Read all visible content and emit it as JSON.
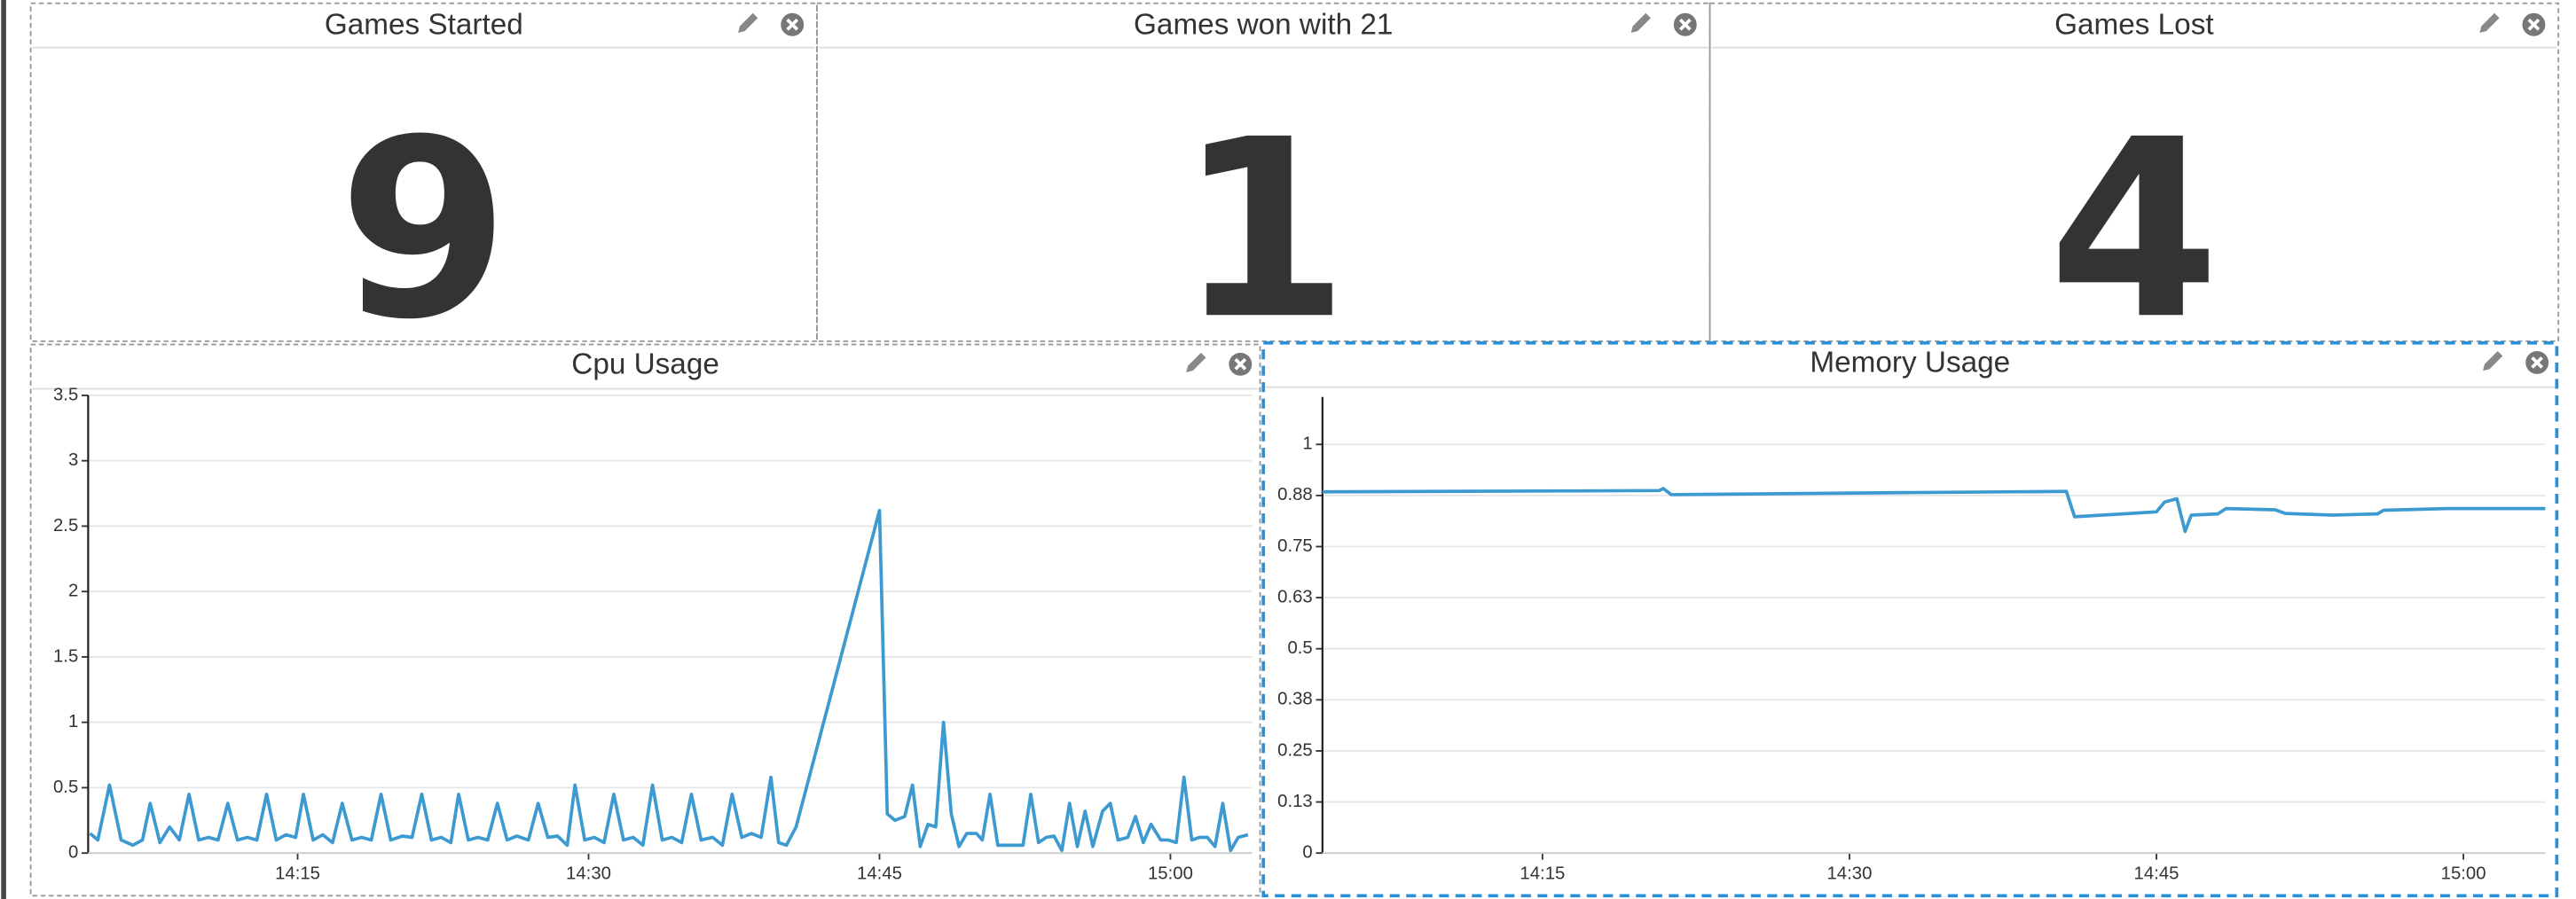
{
  "stats": [
    {
      "title": "Games Started",
      "value": 9
    },
    {
      "title": "Games won with 21",
      "value": 1
    },
    {
      "title": "Games Lost",
      "value": 4
    }
  ],
  "chart_data": [
    {
      "type": "line",
      "title": "Cpu Usage",
      "color": "#3d9ad1",
      "grid": true,
      "x": [
        844.3,
        844.7,
        845.3,
        845.9,
        846.5,
        847.0,
        847.4,
        847.9,
        848.4,
        848.9,
        849.4,
        849.9,
        850.4,
        850.9,
        851.4,
        851.9,
        852.4,
        852.9,
        853.4,
        853.9,
        854.4,
        854.9,
        855.3,
        855.8,
        856.3,
        856.8,
        857.3,
        857.8,
        858.3,
        858.8,
        859.3,
        859.8,
        860.4,
        860.9,
        861.4,
        861.9,
        862.4,
        862.9,
        863.3,
        863.8,
        864.3,
        864.8,
        865.3,
        865.8,
        866.3,
        866.9,
        867.4,
        867.9,
        868.4,
        868.9,
        869.3,
        869.8,
        870.3,
        870.8,
        871.3,
        871.8,
        872.3,
        872.8,
        873.3,
        873.8,
        874.3,
        874.8,
        875.3,
        875.8,
        876.4,
        876.9,
        877.4,
        877.9,
        878.4,
        878.9,
        879.4,
        879.8,
        880.2,
        880.7,
        885.0,
        885.4,
        885.8,
        886.3,
        886.7,
        887.1,
        887.5,
        887.9,
        888.3,
        888.7,
        889.1,
        889.5,
        890.0,
        890.3,
        890.7,
        891.1,
        891.6,
        892.1,
        892.4,
        892.8,
        893.2,
        893.6,
        894.0,
        894.4,
        894.8,
        895.2,
        895.6,
        896.0,
        896.5,
        896.9,
        897.3,
        897.8,
        898.2,
        898.6,
        899.0,
        899.5,
        899.9,
        900.3,
        900.7,
        901.1,
        901.5,
        901.9,
        902.3,
        902.7,
        903.1,
        903.5,
        904.0
      ],
      "values": [
        0.15,
        0.1,
        0.52,
        0.1,
        0.06,
        0.1,
        0.38,
        0.08,
        0.2,
        0.1,
        0.45,
        0.1,
        0.12,
        0.1,
        0.38,
        0.1,
        0.12,
        0.1,
        0.45,
        0.1,
        0.14,
        0.12,
        0.45,
        0.1,
        0.14,
        0.08,
        0.38,
        0.1,
        0.12,
        0.1,
        0.45,
        0.1,
        0.13,
        0.12,
        0.45,
        0.1,
        0.12,
        0.08,
        0.45,
        0.1,
        0.12,
        0.1,
        0.38,
        0.1,
        0.13,
        0.1,
        0.38,
        0.12,
        0.13,
        0.06,
        0.52,
        0.1,
        0.12,
        0.08,
        0.45,
        0.1,
        0.12,
        0.06,
        0.52,
        0.1,
        0.12,
        0.08,
        0.45,
        0.1,
        0.12,
        0.06,
        0.45,
        0.12,
        0.15,
        0.12,
        0.58,
        0.08,
        0.06,
        0.2,
        2.62,
        0.3,
        0.25,
        0.28,
        0.52,
        0.05,
        0.22,
        0.2,
        1.0,
        0.3,
        0.05,
        0.15,
        0.15,
        0.1,
        0.45,
        0.06,
        0.06,
        0.06,
        0.06,
        0.45,
        0.08,
        0.12,
        0.13,
        0.02,
        0.38,
        0.05,
        0.32,
        0.05,
        0.32,
        0.38,
        0.1,
        0.12,
        0.28,
        0.08,
        0.22,
        0.1,
        0.1,
        0.08,
        0.58,
        0.1,
        0.12,
        0.12,
        0.05,
        0.38,
        0.02,
        0.12,
        0.14
      ],
      "xlim": [
        844.2,
        904.2
      ],
      "xticks": [
        {
          "value": 855,
          "label": "14:15"
        },
        {
          "value": 870,
          "label": "14:30"
        },
        {
          "value": 885,
          "label": "14:45"
        },
        {
          "value": 900,
          "label": "15:00"
        }
      ],
      "ylim": [
        0,
        3.5
      ],
      "yticks": [
        0,
        0.5,
        1,
        1.5,
        2,
        2.5,
        3,
        3.5
      ]
    },
    {
      "type": "line",
      "title": "Memory Usage",
      "color": "#3d9ad1",
      "grid": true,
      "x": [
        844.25,
        860.7,
        860.9,
        861.3,
        872.7,
        880.6,
        881.0,
        885.0,
        885.4,
        886.0,
        886.4,
        886.7,
        888.0,
        888.4,
        890.8,
        891.3,
        893.6,
        895.8,
        896.1,
        899.2,
        904.0
      ],
      "values": [
        0.884,
        0.887,
        0.892,
        0.877,
        0.882,
        0.885,
        0.823,
        0.835,
        0.859,
        0.867,
        0.787,
        0.827,
        0.83,
        0.843,
        0.84,
        0.831,
        0.827,
        0.83,
        0.839,
        0.843,
        0.843
      ],
      "xlim": [
        844.25,
        904
      ],
      "xticks": [
        {
          "value": 855,
          "label": "14:15"
        },
        {
          "value": 870,
          "label": "14:30"
        },
        {
          "value": 885,
          "label": "14:45"
        },
        {
          "value": 900,
          "label": "15:00"
        }
      ],
      "ylim": [
        0,
        1.116
      ],
      "yticks": [
        0,
        {
          "value": 0.125,
          "label": "0.13"
        },
        0.25,
        {
          "value": 0.375,
          "label": "0.38"
        },
        0.5,
        {
          "value": 0.625,
          "label": "0.63"
        },
        0.75,
        {
          "value": 0.875,
          "label": "0.88"
        },
        1
      ]
    }
  ]
}
